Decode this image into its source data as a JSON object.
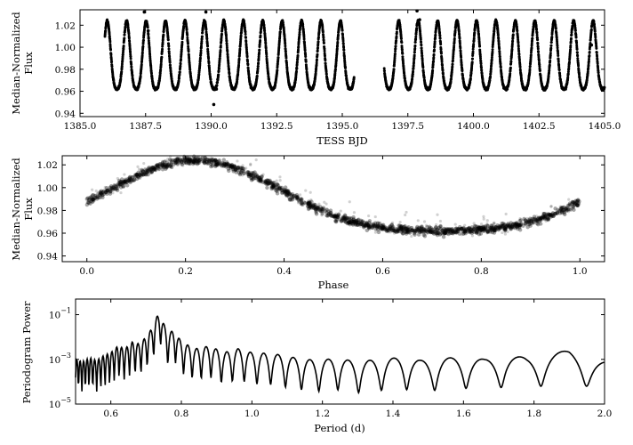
{
  "chart_data": [
    {
      "type": "scatter",
      "xlabel": "TESS BJD",
      "ylabel": [
        "Median-Normalized",
        "Flux"
      ],
      "xlim": [
        1385.0,
        1405.0
      ],
      "ylim": [
        0.937,
        1.034
      ],
      "xticks": [
        1385.0,
        1387.5,
        1390.0,
        1392.5,
        1395.0,
        1397.5,
        1400.0,
        1402.5,
        1405.0
      ],
      "xtick_labels": [
        "1385.0",
        "1387.5",
        "1390.0",
        "1392.5",
        "1395.0",
        "1397.5",
        "1400.0",
        "1402.5",
        "1405.0"
      ],
      "yticks": [
        0.94,
        0.96,
        0.98,
        1.0,
        1.02
      ],
      "ytick_labels": [
        "0.94",
        "0.96",
        "0.98",
        "1.00",
        "1.02"
      ],
      "series": [
        {
          "segments": [
            [
              1385.95,
              1395.45
            ],
            [
              1396.6,
              1405.0
            ]
          ],
          "period_days": 0.741,
          "center": 0.987,
          "amplitude": 0.031,
          "trough_phase": 0.72,
          "outliers": [
            [
              1387.45,
              1.032
            ],
            [
              1387.6,
              1.015
            ],
            [
              1389.8,
              1.032
            ],
            [
              1390.1,
              0.948
            ],
            [
              1390.2,
              0.962
            ],
            [
              1397.85,
              1.033
            ],
            [
              1397.95,
              1.025
            ],
            [
              1404.5,
              1.002
            ]
          ]
        }
      ],
      "color": "#000000"
    },
    {
      "type": "scatter",
      "xlabel": "Phase",
      "ylabel": [
        "Median-Normalized",
        "Flux"
      ],
      "xlim": [
        -0.05,
        1.05
      ],
      "ylim": [
        0.935,
        1.028
      ],
      "xticks": [
        0.0,
        0.2,
        0.4,
        0.6,
        0.8,
        1.0
      ],
      "xtick_labels": [
        "0.0",
        "0.2",
        "0.4",
        "0.6",
        "0.8",
        "1.0"
      ],
      "yticks": [
        0.94,
        0.96,
        0.98,
        1.0,
        1.02
      ],
      "ytick_labels": [
        "0.94",
        "0.96",
        "0.98",
        "1.00",
        "1.02"
      ],
      "series": [
        {
          "phase_range": [
            0.0,
            1.0
          ],
          "model": {
            "center": 0.987,
            "amplitude": 0.031,
            "trough_phase": 0.72,
            "peak_phase": 0.22
          },
          "band_width": 0.006
        }
      ],
      "color": "#333333"
    },
    {
      "type": "line",
      "xlabel": "Period (d)",
      "ylabel": [
        "Periodogram Power"
      ],
      "xlim": [
        0.5,
        2.0
      ],
      "ylim": [
        1e-05,
        0.5
      ],
      "yscale": "log",
      "xticks": [
        0.6,
        0.8,
        1.0,
        1.2,
        1.4,
        1.6,
        1.8,
        2.0
      ],
      "xtick_labels": [
        "0.6",
        "0.8",
        "1.0",
        "1.2",
        "1.4",
        "1.6",
        "1.8",
        "2.0"
      ],
      "yticks": [
        1e-05,
        0.001,
        0.1
      ],
      "ytick_labels": [
        [
          "10",
          "−5"
        ],
        [
          "10",
          "−3"
        ],
        [
          "10",
          "−1"
        ]
      ],
      "x": [
        0.5,
        0.52,
        0.54,
        0.56,
        0.58,
        0.6,
        0.62,
        0.64,
        0.66,
        0.68,
        0.7,
        0.72,
        0.73,
        0.74,
        0.75,
        0.76,
        0.78,
        0.8,
        0.84,
        0.88,
        0.92,
        0.96,
        1.0,
        1.06,
        1.12,
        1.18,
        1.24,
        1.3,
        1.36,
        1.42,
        1.48,
        1.54,
        1.6,
        1.66,
        1.72,
        1.78,
        1.84,
        1.9,
        1.96,
        2.0
      ],
      "y": [
        0.001,
        0.0008,
        0.0012,
        0.0009,
        0.0015,
        0.002,
        0.004,
        0.003,
        0.006,
        0.005,
        0.01,
        0.03,
        0.08,
        0.12,
        0.04,
        0.015,
        0.02,
        0.006,
        0.003,
        0.004,
        0.002,
        0.003,
        0.002,
        0.0018,
        0.0012,
        0.0009,
        0.0011,
        0.0008,
        0.001,
        0.0012,
        0.0009,
        0.0011,
        0.0013,
        0.001,
        0.0015,
        0.0012,
        0.0018,
        0.0025,
        0.0014,
        0.0009
      ],
      "color": "#000000"
    }
  ]
}
